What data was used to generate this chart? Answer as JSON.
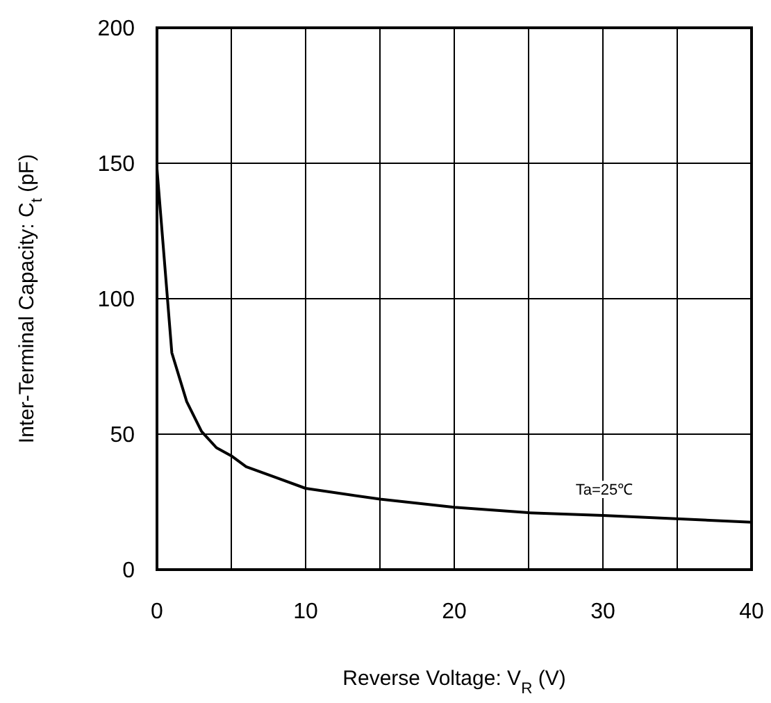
{
  "chart_data": {
    "type": "line",
    "xlabel": "Reverse Voltage: V$_{R}$ (V)",
    "ylabel": "Inter-Terminal Capacity: C$_{t}$ (pF)",
    "annotations": [
      "Ta=25℃"
    ],
    "x": [
      0,
      1,
      2,
      3,
      4,
      5,
      6,
      8,
      10,
      15,
      20,
      25,
      30,
      40
    ],
    "series": [
      {
        "color": "#000000",
        "values": [
          148,
          80,
          62,
          51,
          45,
          42,
          38,
          34,
          30,
          26,
          23,
          21,
          20,
          17.5
        ]
      }
    ],
    "xlim": [
      0,
      40
    ],
    "ylim": [
      0,
      200
    ],
    "xticks": [
      0,
      {
        "value": 5,
        "label": null
      },
      10,
      {
        "value": 15,
        "label": null
      },
      20,
      {
        "value": 25,
        "label": null
      },
      30,
      {
        "value": 35,
        "label": null
      },
      40
    ],
    "yticks": [
      0,
      50,
      100,
      150,
      200
    ],
    "grid": true,
    "marker": "none",
    "line_style": "solid"
  }
}
